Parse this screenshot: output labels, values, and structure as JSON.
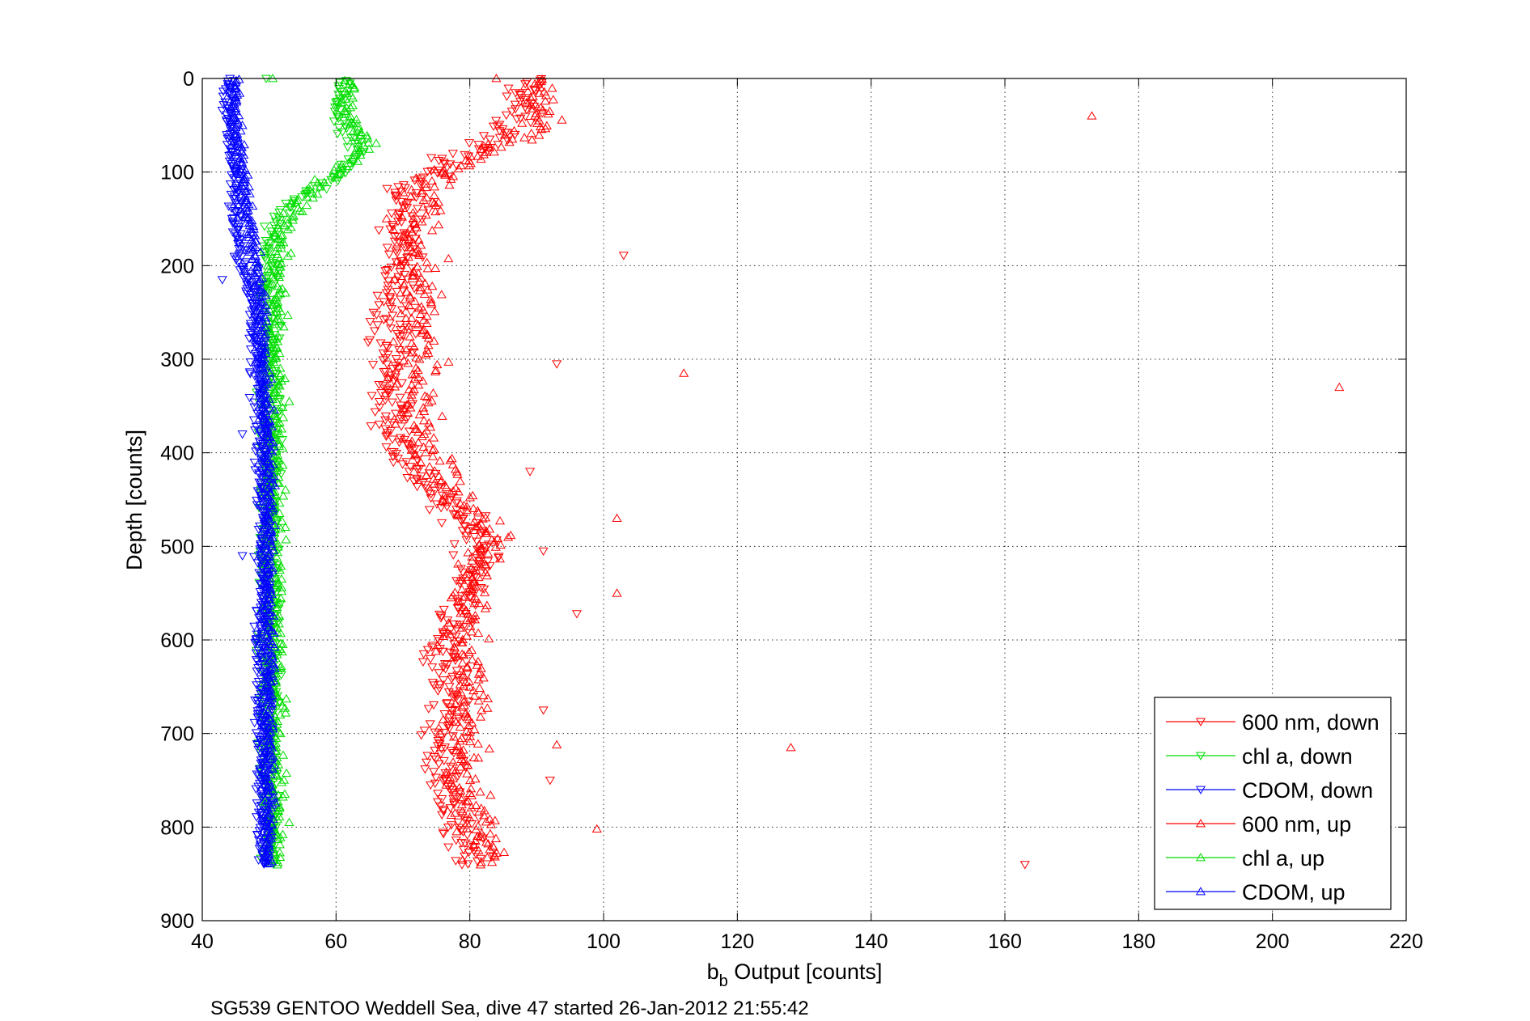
{
  "chart_data": {
    "type": "scatter",
    "title": "",
    "caption": "SG539 GENTOO Weddell Sea, dive 47 started 26-Jan-2012 21:55:42",
    "xlabel_main": "b",
    "xlabel_sub": "b",
    "xlabel_rest": " Output [counts]",
    "ylabel": "Depth [counts]",
    "xlim": [
      40,
      220
    ],
    "ylim": [
      0,
      900
    ],
    "y_reversed": true,
    "grid": true,
    "legend_position": "bottom-right",
    "x_ticks": [
      "40",
      "60",
      "80",
      "100",
      "120",
      "140",
      "160",
      "180",
      "200",
      "220"
    ],
    "y_ticks": [
      "0",
      "100",
      "200",
      "300",
      "400",
      "500",
      "600",
      "700",
      "800",
      "900"
    ],
    "series": [
      {
        "name": "600 nm, down",
        "color": "#ff0000",
        "marker": "triangle-down",
        "profile": [
          [
            0,
            89
          ],
          [
            20,
            88
          ],
          [
            40,
            87
          ],
          [
            60,
            85
          ],
          [
            80,
            79
          ],
          [
            100,
            74
          ],
          [
            120,
            71
          ],
          [
            150,
            70
          ],
          [
            200,
            69
          ],
          [
            250,
            69
          ],
          [
            300,
            68
          ],
          [
            350,
            68
          ],
          [
            400,
            70
          ],
          [
            430,
            73
          ],
          [
            460,
            77
          ],
          [
            480,
            80
          ],
          [
            500,
            82
          ],
          [
            550,
            80
          ],
          [
            600,
            76
          ],
          [
            650,
            77
          ],
          [
            700,
            76
          ],
          [
            750,
            76
          ],
          [
            800,
            78
          ],
          [
            840,
            80
          ]
        ],
        "outliers": [
          [
            93,
            305
          ],
          [
            103,
            189
          ],
          [
            89,
            420
          ],
          [
            96,
            572
          ],
          [
            91,
            505
          ],
          [
            91,
            675
          ],
          [
            163,
            840
          ],
          [
            92,
            750
          ]
        ]
      },
      {
        "name": "chl a, down",
        "color": "#00dd00",
        "marker": "triangle-down",
        "profile": [
          [
            0,
            61
          ],
          [
            40,
            60
          ],
          [
            80,
            63
          ],
          [
            100,
            62
          ],
          [
            120,
            56
          ],
          [
            150,
            51
          ],
          [
            200,
            50
          ],
          [
            300,
            50
          ],
          [
            400,
            50
          ],
          [
            500,
            50
          ],
          [
            600,
            50
          ],
          [
            700,
            50
          ],
          [
            840,
            50
          ]
        ],
        "outliers": []
      },
      {
        "name": "CDOM, down",
        "color": "#0000ff",
        "marker": "triangle-down",
        "profile": [
          [
            0,
            44
          ],
          [
            50,
            44
          ],
          [
            100,
            45
          ],
          [
            150,
            45
          ],
          [
            200,
            46
          ],
          [
            250,
            48
          ],
          [
            300,
            48
          ],
          [
            400,
            49
          ],
          [
            500,
            49
          ],
          [
            600,
            49
          ],
          [
            700,
            49
          ],
          [
            840,
            49
          ]
        ],
        "outliers": [
          [
            43,
            215
          ],
          [
            46,
            380
          ],
          [
            46,
            510
          ]
        ]
      },
      {
        "name": "600 nm, up",
        "color": "#ff0000",
        "marker": "triangle-up",
        "profile": [
          [
            0,
            90
          ],
          [
            20,
            90
          ],
          [
            40,
            90
          ],
          [
            60,
            88
          ],
          [
            80,
            82
          ],
          [
            100,
            76
          ],
          [
            120,
            73
          ],
          [
            150,
            72
          ],
          [
            200,
            72
          ],
          [
            250,
            72
          ],
          [
            300,
            72
          ],
          [
            350,
            72
          ],
          [
            400,
            74
          ],
          [
            430,
            76
          ],
          [
            460,
            79
          ],
          [
            490,
            84
          ],
          [
            520,
            81
          ],
          [
            550,
            80
          ],
          [
            600,
            79
          ],
          [
            650,
            80
          ],
          [
            700,
            79
          ],
          [
            750,
            79
          ],
          [
            800,
            81
          ],
          [
            840,
            83
          ]
        ],
        "outliers": [
          [
            173,
            40
          ],
          [
            112,
            315
          ],
          [
            210,
            330
          ],
          [
            102,
            470
          ],
          [
            102,
            550
          ],
          [
            128,
            715
          ],
          [
            99,
            802
          ],
          [
            93,
            712
          ]
        ]
      },
      {
        "name": "chl a, up",
        "color": "#00dd00",
        "marker": "triangle-up",
        "profile": [
          [
            0,
            62
          ],
          [
            40,
            62
          ],
          [
            70,
            65
          ],
          [
            100,
            60
          ],
          [
            130,
            55
          ],
          [
            160,
            52
          ],
          [
            200,
            51
          ],
          [
            300,
            51
          ],
          [
            400,
            51
          ],
          [
            500,
            51
          ],
          [
            600,
            51
          ],
          [
            700,
            51
          ],
          [
            840,
            51
          ]
        ],
        "outliers": [
          [
            53,
            795
          ]
        ]
      },
      {
        "name": "CDOM, up",
        "color": "#0000ff",
        "marker": "triangle-up",
        "profile": [
          [
            0,
            45
          ],
          [
            50,
            45
          ],
          [
            100,
            46
          ],
          [
            150,
            47
          ],
          [
            200,
            48
          ],
          [
            250,
            49
          ],
          [
            300,
            49
          ],
          [
            400,
            50
          ],
          [
            500,
            50
          ],
          [
            600,
            50
          ],
          [
            700,
            50
          ],
          [
            840,
            50
          ]
        ],
        "outliers": []
      }
    ]
  }
}
